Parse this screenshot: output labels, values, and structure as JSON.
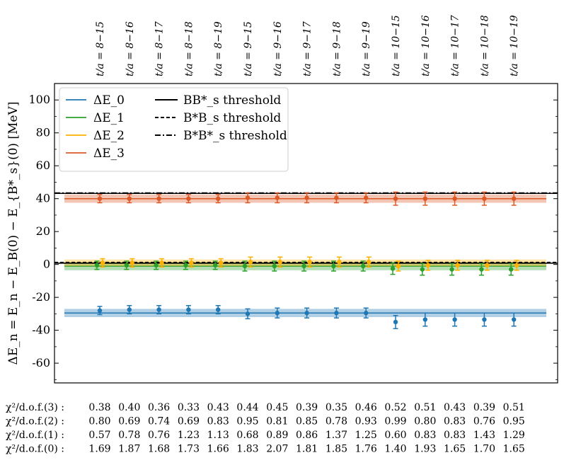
{
  "chart_data": {
    "type": "scatter",
    "title": "",
    "xlabel": "",
    "ylabel": "ΔE_n = E_n − E_B(0) − E_{B*_s}(0) [MeV]",
    "ylim": [
      -72,
      110
    ],
    "yticks": [
      100,
      80,
      60,
      40,
      20,
      0,
      -20,
      -40,
      -60
    ],
    "ytick_labels": [
      "100",
      "80",
      "60",
      "40",
      "20",
      "0",
      "-20",
      "-40",
      "-60"
    ],
    "grid": false,
    "legend_position": "top-left",
    "fit_windows": [
      "t/a = 8−15",
      "t/a = 8−16",
      "t/a = 8−17",
      "t/a = 8−18",
      "t/a = 8−19",
      "t/a = 9−15",
      "t/a = 9−16",
      "t/a = 9−17",
      "t/a = 9−18",
      "t/a = 9−19",
      "t/a = 10−15",
      "t/a = 10−16",
      "t/a = 10−17",
      "t/a = 10−18",
      "t/a = 10−19"
    ],
    "series": [
      {
        "name": "ΔE_0",
        "color": "#1f77b4",
        "offset": 0,
        "values": [
          -28,
          -27.5,
          -27.5,
          -27.5,
          -27.5,
          -30,
          -29.5,
          -29.5,
          -29.5,
          -29.5,
          -35,
          -33.5,
          -33.5,
          -33.5,
          -33.5
        ],
        "errors": [
          2.5,
          2.5,
          2.5,
          2.5,
          2.5,
          3,
          3,
          3,
          3,
          3,
          4,
          4,
          4,
          4,
          4
        ],
        "band": {
          "center": -29.5,
          "half_width": 2.5
        }
      },
      {
        "name": "ΔE_1",
        "color": "#2ca02c",
        "offset": -1,
        "values": [
          -0.5,
          -0.5,
          -0.5,
          -0.5,
          -0.5,
          -1,
          -1,
          -1,
          -1,
          -1,
          -2.5,
          -3,
          -3,
          -3,
          -3
        ],
        "errors": [
          2.5,
          2.5,
          2.5,
          2.5,
          2.5,
          3,
          3,
          3,
          3,
          3,
          3.5,
          3.5,
          3.5,
          3.5,
          3.5
        ],
        "band": {
          "center": -1,
          "half_width": 2.5
        }
      },
      {
        "name": "ΔE_2",
        "color": "#ffb000",
        "offset": 1,
        "values": [
          1,
          1,
          1,
          1,
          1,
          1.5,
          1.5,
          1.5,
          1.5,
          1.5,
          -1,
          -0.5,
          -0.5,
          -0.5,
          -0.5
        ],
        "errors": [
          2.5,
          2.5,
          2.5,
          2.5,
          2.5,
          3,
          3,
          3,
          3,
          3,
          3,
          3,
          3,
          3,
          3
        ],
        "band": {
          "center": 1,
          "half_width": 2
        }
      },
      {
        "name": "ΔE_3",
        "color": "#dc5a28",
        "offset": 0,
        "values": [
          40,
          40,
          40,
          40,
          40,
          40.5,
          40.5,
          40.5,
          40.5,
          40.5,
          40,
          40,
          40,
          40,
          40
        ],
        "errors": [
          2.5,
          2.5,
          2.5,
          2.5,
          2.5,
          3,
          3,
          3,
          3,
          3,
          4,
          4,
          4,
          4,
          4
        ],
        "band": {
          "center": 40,
          "half_width": 2.5
        }
      }
    ],
    "thresholds": [
      {
        "name": "BB*_s threshold",
        "value": 0.8,
        "style": "solid"
      },
      {
        "name": "B*B_s threshold",
        "value": 1.3,
        "style": "dashed"
      },
      {
        "name": "B*B*_s threshold",
        "value": 43.5,
        "style": "dashdot"
      },
      {
        "name": "",
        "value": 43.2,
        "style": "solid"
      }
    ],
    "chi2_rows": [
      {
        "label": "χ²/d.o.f.(3) :",
        "values": [
          "0.38",
          "0.40",
          "0.36",
          "0.33",
          "0.43",
          "0.44",
          "0.45",
          "0.39",
          "0.35",
          "0.46",
          "0.52",
          "0.51",
          "0.43",
          "0.39",
          "0.51"
        ]
      },
      {
        "label": "χ²/d.o.f.(2) :",
        "values": [
          "0.80",
          "0.69",
          "0.74",
          "0.69",
          "0.83",
          "0.95",
          "0.81",
          "0.85",
          "0.78",
          "0.93",
          "0.99",
          "0.80",
          "0.83",
          "0.76",
          "0.95"
        ]
      },
      {
        "label": "χ²/d.o.f.(1) :",
        "values": [
          "0.57",
          "0.78",
          "0.76",
          "1.23",
          "1.13",
          "0.68",
          "0.89",
          "0.86",
          "1.37",
          "1.25",
          "0.60",
          "0.83",
          "0.83",
          "1.43",
          "1.29"
        ]
      },
      {
        "label": "χ²/d.o.f.(0) :",
        "values": [
          "1.69",
          "1.87",
          "1.68",
          "1.73",
          "1.66",
          "1.83",
          "2.07",
          "1.81",
          "1.85",
          "1.76",
          "1.40",
          "1.93",
          "1.65",
          "1.70",
          "1.65"
        ]
      }
    ],
    "legend": {
      "energies": [
        "ΔE_0",
        "ΔE_1",
        "ΔE_2",
        "ΔE_3"
      ],
      "thresholds": [
        "BB*_s threshold",
        "B*B_s threshold",
        "B*B*_s threshold"
      ]
    }
  }
}
